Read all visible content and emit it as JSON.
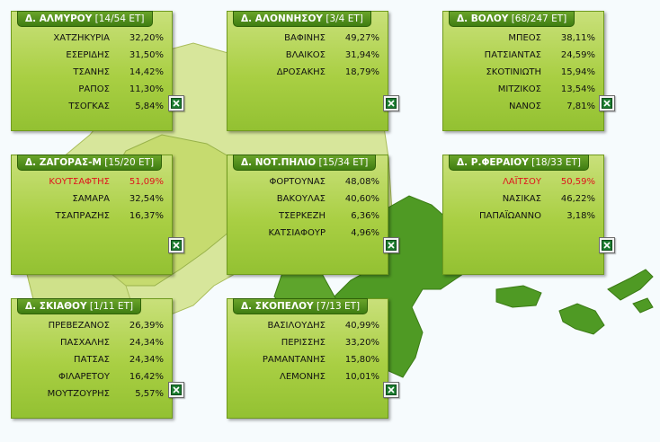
{
  "panels": [
    {
      "id": "almyrou",
      "name": "Δ. ΑΛΜΥΡΟΥ",
      "seats": "[14/54 ΕΤ]",
      "rows": [
        {
          "name": "ΧΑΤΖΗΚΥΡΙΑ",
          "pct": "32,20%",
          "lead": false
        },
        {
          "name": "ΕΣΕΡΙΔΗΣ",
          "pct": "31,50%",
          "lead": false
        },
        {
          "name": "ΤΣΑΝΗΣ",
          "pct": "14,42%",
          "lead": false
        },
        {
          "name": "ΡΑΠΟΣ",
          "pct": "11,30%",
          "lead": false
        },
        {
          "name": "ΤΣΟΓΚΑΣ",
          "pct": "5,84%",
          "lead": false
        }
      ]
    },
    {
      "id": "alonnisou",
      "name": "Δ. ΑΛΟΝΝΗΣΟΥ",
      "seats": "[3/4 ΕΤ]",
      "rows": [
        {
          "name": "ΒΑΦΙΝΗΣ",
          "pct": "49,27%",
          "lead": false
        },
        {
          "name": "ΒΛΑΙΚΟΣ",
          "pct": "31,94%",
          "lead": false
        },
        {
          "name": "ΔΡΟΣΑΚΗΣ",
          "pct": "18,79%",
          "lead": false
        }
      ]
    },
    {
      "id": "volou",
      "name": "Δ. ΒΟΛΟΥ",
      "seats": "[68/247 ΕΤ]",
      "rows": [
        {
          "name": "ΜΠΕΟΣ",
          "pct": "38,11%",
          "lead": false
        },
        {
          "name": "ΠΑΤΣΙΑΝΤΑΣ",
          "pct": "24,59%",
          "lead": false
        },
        {
          "name": "ΣΚΟΤΙΝΙΩΤΗ",
          "pct": "15,94%",
          "lead": false
        },
        {
          "name": "ΜΙΤΖΙΚΟΣ",
          "pct": "13,54%",
          "lead": false
        },
        {
          "name": "ΝΑΝΟΣ",
          "pct": "7,81%",
          "lead": false
        }
      ]
    },
    {
      "id": "zagoras",
      "name": "Δ. ΖΑΓΟΡΑΣ-Μ",
      "seats": "[15/20 ΕΤ]",
      "rows": [
        {
          "name": "ΚΟΥΤΣΑΦΤΗΣ",
          "pct": "51,09%",
          "lead": true
        },
        {
          "name": "ΣΑΜΑΡΑ",
          "pct": "32,54%",
          "lead": false
        },
        {
          "name": "ΤΣΑΠΡΑΖΗΣ",
          "pct": "16,37%",
          "lead": false
        }
      ]
    },
    {
      "id": "notpiliou",
      "name": "Δ. ΝΟΤ.ΠΗΛΙΟ",
      "seats": "[15/34 ΕΤ]",
      "rows": [
        {
          "name": "ΦΟΡΤΟΥΝΑΣ",
          "pct": "48,08%",
          "lead": false
        },
        {
          "name": "ΒΑΚΟΥΛΑΣ",
          "pct": "40,60%",
          "lead": false
        },
        {
          "name": "ΤΣΕΡΚΕΖΗ",
          "pct": "6,36%",
          "lead": false
        },
        {
          "name": "ΚΑΤΣΙΑΦΟΥΡ",
          "pct": "4,96%",
          "lead": false
        }
      ]
    },
    {
      "id": "rferaiou",
      "name": "Δ. Ρ.ΦΕΡΑΙΟΥ",
      "seats": "[18/33 ΕΤ]",
      "rows": [
        {
          "name": "ΛΑΪΤΣΟΥ",
          "pct": "50,59%",
          "lead": true
        },
        {
          "name": "ΝΑΣΙΚΑΣ",
          "pct": "46,22%",
          "lead": false
        },
        {
          "name": "ΠΑΠΑΪΩΑΝΝΟ",
          "pct": "3,18%",
          "lead": false
        }
      ]
    },
    {
      "id": "skiathou",
      "name": "Δ. ΣΚΙΑΘΟΥ",
      "seats": "[1/11 ΕΤ]",
      "rows": [
        {
          "name": "ΠΡΕΒΕΖΑΝΟΣ",
          "pct": "26,39%",
          "lead": false
        },
        {
          "name": "ΠΑΣΧΑΛΗΣ",
          "pct": "24,34%",
          "lead": false
        },
        {
          "name": "ΠΑΤΣΑΣ",
          "pct": "24,34%",
          "lead": false
        },
        {
          "name": "ΦΙΛΑΡΕΤΟΥ",
          "pct": "16,42%",
          "lead": false
        },
        {
          "name": "ΜΟΥΤΖΟΥΡΗΣ",
          "pct": "5,57%",
          "lead": false
        }
      ]
    },
    {
      "id": "skopelou",
      "name": "Δ. ΣΚΟΠΕΛΟΥ",
      "seats": "[7/13 ΕΤ]",
      "rows": [
        {
          "name": "ΒΑΣΙΛΟΥΔΗΣ",
          "pct": "40,99%",
          "lead": false
        },
        {
          "name": "ΠΕΡΙΣΣΗΣ",
          "pct": "33,20%",
          "lead": false
        },
        {
          "name": "ΡΑΜΑΝΤΑΝΗΣ",
          "pct": "15,80%",
          "lead": false
        },
        {
          "name": "ΛΕΜΟΝΗΣ",
          "pct": "10,01%",
          "lead": false
        }
      ]
    }
  ],
  "colors": {
    "panel": "#a9cf43",
    "header": "#4b8a1a",
    "lead_text": "#e0131c",
    "map_light": "#d8e79a",
    "map_dark": "#4f9a24"
  },
  "icons": {
    "export": "excel-icon"
  }
}
